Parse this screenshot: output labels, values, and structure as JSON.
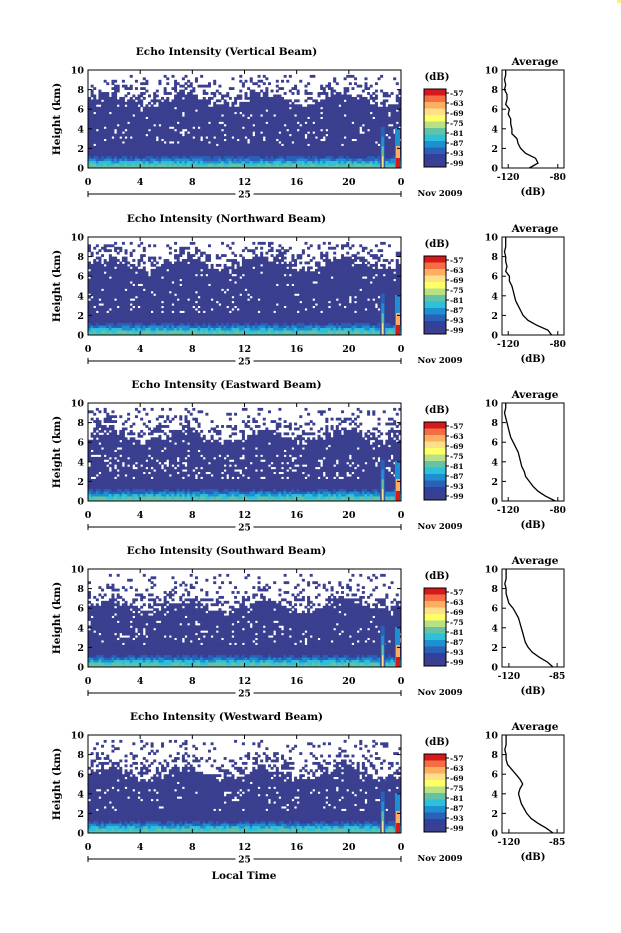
{
  "colorbar": {
    "unit": "(dB)",
    "ticks": [
      "-57",
      "-63",
      "-69",
      "-75",
      "-81",
      "-87",
      "-93",
      "-99"
    ],
    "colors": [
      "#d7191c",
      "#f46d43",
      "#fdae61",
      "#fee08b",
      "#ffff66",
      "#b8e186",
      "#66c2a5",
      "#2fc0d9",
      "#1e8fd0",
      "#2a60b8",
      "#33409a",
      "#3b3f8f"
    ]
  },
  "footer": {
    "date_label": "Nov 2009",
    "day_label": "25",
    "xlabel": "Local Time"
  },
  "chart_data": [
    {
      "type": "heatmap",
      "title": "Echo Intensity (Vertical Beam)",
      "ylabel": "Height (km)",
      "xticks": [
        "0",
        "4",
        "8",
        "12",
        "16",
        "20",
        "0"
      ],
      "yticks": [
        "0",
        "2",
        "4",
        "6",
        "8",
        "10"
      ],
      "xlim": [
        0,
        24
      ],
      "ylim": [
        0,
        10
      ],
      "profile": {
        "type": "line",
        "title": "Average",
        "xlabel": "(dB)",
        "xticks": [
          "-120",
          "-80"
        ],
        "yticks": [
          "0",
          "2",
          "4",
          "6",
          "8",
          "10"
        ],
        "xlim": [
          -125,
          -75
        ],
        "ylim": [
          0,
          10
        ],
        "x": [
          -103,
          -96,
          -98,
          -106,
          -110,
          -112,
          -113,
          -117,
          -117,
          -118,
          -118,
          -120,
          -119,
          -122,
          -121,
          -121,
          -123,
          -122,
          -123,
          -122,
          -122
        ],
        "y": [
          0,
          0.5,
          1,
          1.5,
          2,
          2.5,
          3,
          3.5,
          4,
          4.5,
          5,
          5.5,
          6,
          6.5,
          7,
          7.5,
          8,
          8.5,
          9,
          9.5,
          10
        ]
      }
    },
    {
      "type": "heatmap",
      "title": "Echo Intensity (Northward Beam)",
      "ylabel": "Height (km)",
      "xticks": [
        "0",
        "4",
        "8",
        "12",
        "16",
        "20",
        "0"
      ],
      "yticks": [
        "0",
        "2",
        "4",
        "6",
        "8",
        "10"
      ],
      "xlim": [
        0,
        24
      ],
      "ylim": [
        0,
        10
      ],
      "profile": {
        "type": "line",
        "title": "Average",
        "xlabel": "(dB)",
        "xticks": [
          "-120",
          "-80"
        ],
        "yticks": [
          "0",
          "2",
          "4",
          "6",
          "8",
          "10"
        ],
        "xlim": [
          -125,
          -75
        ],
        "ylim": [
          0,
          10
        ],
        "x": [
          -85,
          -88,
          -97,
          -104,
          -108,
          -110,
          -112,
          -114,
          -115,
          -116,
          -117,
          -119,
          -119,
          -122,
          -121,
          -122,
          -122,
          -123,
          -122,
          -122,
          -122
        ],
        "y": [
          0,
          0.5,
          1,
          1.5,
          2,
          2.5,
          3,
          3.5,
          4,
          4.5,
          5,
          5.5,
          6,
          6.5,
          7,
          7.5,
          8,
          8.5,
          9,
          9.5,
          10
        ]
      }
    },
    {
      "type": "heatmap",
      "title": "Echo Intensity (Eastward Beam)",
      "ylabel": "Height (km)",
      "xticks": [
        "0",
        "4",
        "8",
        "12",
        "16",
        "20",
        "0"
      ],
      "yticks": [
        "0",
        "2",
        "4",
        "6",
        "8",
        "10"
      ],
      "xlim": [
        0,
        24
      ],
      "ylim": [
        0,
        10
      ],
      "profile": {
        "type": "line",
        "title": "Average",
        "xlabel": "(dB)",
        "xticks": [
          "-120",
          "-80"
        ],
        "yticks": [
          "0",
          "2",
          "4",
          "6",
          "8",
          "10"
        ],
        "xlim": [
          -125,
          -75
        ],
        "ylim": [
          0,
          10
        ],
        "x": [
          -82,
          -90,
          -96,
          -100,
          -103,
          -106,
          -107,
          -109,
          -110,
          -111,
          -112,
          -114,
          -116,
          -118,
          -119,
          -120,
          -121,
          -122,
          -123,
          -122,
          -122
        ],
        "y": [
          0,
          0.5,
          1,
          1.5,
          2,
          2.5,
          3,
          3.5,
          4,
          4.5,
          5,
          5.5,
          6,
          6.5,
          7,
          7.5,
          8,
          8.5,
          9,
          9.5,
          10
        ]
      }
    },
    {
      "type": "heatmap",
      "title": "Echo Intensity (Southward Beam)",
      "ylabel": "Height (km)",
      "xticks": [
        "0",
        "4",
        "8",
        "12",
        "16",
        "20",
        "0"
      ],
      "yticks": [
        "0",
        "2",
        "4",
        "6",
        "8",
        "10"
      ],
      "xlim": [
        0,
        24
      ],
      "ylim": [
        0,
        10
      ],
      "profile": {
        "type": "line",
        "title": "Average",
        "xlabel": "(dB)",
        "xticks": [
          "-120",
          "-85"
        ],
        "yticks": [
          "0",
          "2",
          "4",
          "6",
          "8",
          "10"
        ],
        "xlim": [
          -125,
          -80
        ],
        "ylim": [
          0,
          10
        ],
        "x": [
          -88,
          -92,
          -98,
          -103,
          -106,
          -108,
          -109,
          -110,
          -111,
          -112,
          -113,
          -115,
          -117,
          -120,
          -121,
          -122,
          -122,
          -123,
          -122,
          -122,
          -122
        ],
        "y": [
          0,
          0.5,
          1,
          1.5,
          2,
          2.5,
          3,
          3.5,
          4,
          4.5,
          5,
          5.5,
          6,
          6.5,
          7,
          7.5,
          8,
          8.5,
          9,
          9.5,
          10
        ]
      }
    },
    {
      "type": "heatmap",
      "title": "Echo Intensity (Westward Beam)",
      "ylabel": "Height (km)",
      "xticks": [
        "0",
        "4",
        "8",
        "12",
        "16",
        "20",
        "0"
      ],
      "yticks": [
        "0",
        "2",
        "4",
        "6",
        "8",
        "10"
      ],
      "xlim": [
        0,
        24
      ],
      "ylim": [
        0,
        10
      ],
      "profile": {
        "type": "line",
        "title": "Average",
        "xlabel": "(dB)",
        "xticks": [
          "-120",
          "-85"
        ],
        "yticks": [
          "0",
          "2",
          "4",
          "6",
          "8",
          "10"
        ],
        "xlim": [
          -125,
          -80
        ],
        "ylim": [
          0,
          10
        ],
        "x": [
          -88,
          -93,
          -99,
          -104,
          -107,
          -109,
          -111,
          -112,
          -113,
          -112,
          -110,
          -112,
          -115,
          -118,
          -121,
          -122,
          -122,
          -123,
          -122,
          -122,
          -122
        ],
        "y": [
          0,
          0.5,
          1,
          1.5,
          2,
          2.5,
          3,
          3.5,
          4,
          4.5,
          5,
          5.5,
          6,
          6.5,
          7,
          7.5,
          8,
          8.5,
          9,
          9.5,
          10
        ]
      }
    }
  ]
}
